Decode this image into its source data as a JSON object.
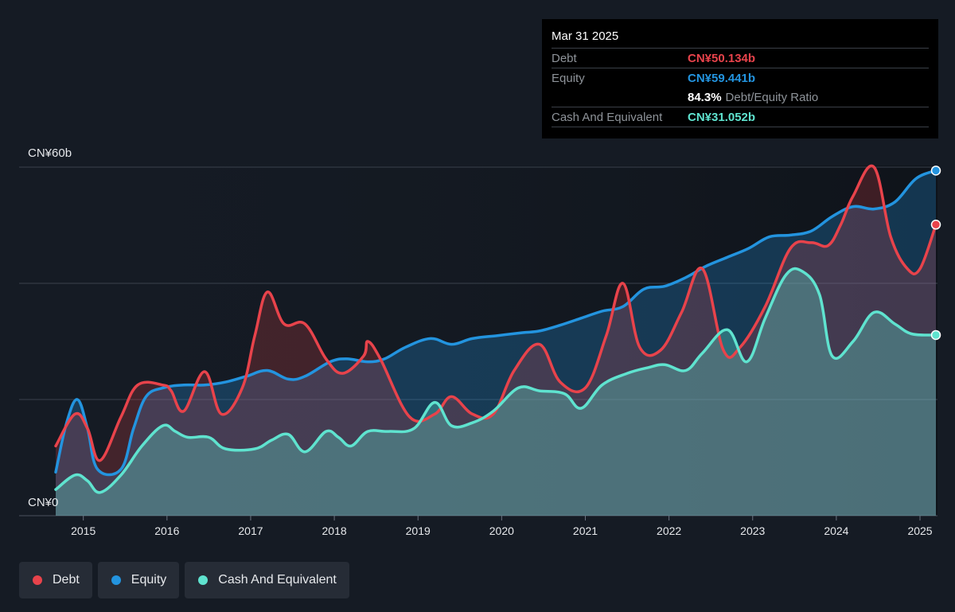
{
  "tooltip": {
    "date": "Mar 31 2025",
    "debt_label": "Debt",
    "debt_value": "CN¥50.134b",
    "equity_label": "Equity",
    "equity_value": "CN¥59.441b",
    "ratio_value": "84.3%",
    "ratio_label": "Debt/Equity Ratio",
    "cash_label": "Cash And Equivalent",
    "cash_value": "CN¥31.052b"
  },
  "legend": [
    {
      "label": "Debt",
      "color": "#e8434b"
    },
    {
      "label": "Equity",
      "color": "#2394df"
    },
    {
      "label": "Cash And Equivalent",
      "color": "#5fe3cf"
    }
  ],
  "colors": {
    "debt": "#e8434b",
    "equity": "#2394df",
    "cash": "#5fe3cf",
    "grid": "#3a414c"
  },
  "chart_data": {
    "type": "area",
    "y_top_label": "CN¥60b",
    "y_bottom_label": "CN¥0",
    "ylim": [
      0,
      60
    ],
    "x_tick_labels": [
      "2015",
      "2016",
      "2017",
      "2018",
      "2019",
      "2020",
      "2021",
      "2022",
      "2023",
      "2024",
      "2025"
    ],
    "xlim": [
      2014.72,
      2025.24
    ],
    "series": [
      {
        "name": "Debt",
        "key": "debt",
        "points": [
          [
            2014.72,
            12
          ],
          [
            2014.95,
            17.5
          ],
          [
            2015.1,
            15
          ],
          [
            2015.25,
            9.5
          ],
          [
            2015.5,
            17
          ],
          [
            2015.7,
            22.5
          ],
          [
            2016.0,
            22.5
          ],
          [
            2016.1,
            21.5
          ],
          [
            2016.25,
            18
          ],
          [
            2016.5,
            24.8
          ],
          [
            2016.7,
            17.5
          ],
          [
            2016.95,
            22
          ],
          [
            2017.1,
            31
          ],
          [
            2017.25,
            38.5
          ],
          [
            2017.45,
            33
          ],
          [
            2017.7,
            33
          ],
          [
            2017.95,
            27
          ],
          [
            2018.15,
            24.5
          ],
          [
            2018.4,
            27.5
          ],
          [
            2018.45,
            30
          ],
          [
            2018.6,
            27
          ],
          [
            2018.95,
            17
          ],
          [
            2019.25,
            17.5
          ],
          [
            2019.45,
            20.5
          ],
          [
            2019.7,
            17.5
          ],
          [
            2019.95,
            17.5
          ],
          [
            2020.2,
            25
          ],
          [
            2020.5,
            29.5
          ],
          [
            2020.75,
            23
          ],
          [
            2021.05,
            22
          ],
          [
            2021.3,
            31
          ],
          [
            2021.5,
            40
          ],
          [
            2021.7,
            29
          ],
          [
            2021.95,
            28.5
          ],
          [
            2022.2,
            35
          ],
          [
            2022.45,
            42.5
          ],
          [
            2022.7,
            28.5
          ],
          [
            2022.9,
            29
          ],
          [
            2023.2,
            36
          ],
          [
            2023.5,
            46
          ],
          [
            2023.75,
            47
          ],
          [
            2023.95,
            46.5
          ],
          [
            2024.1,
            50
          ],
          [
            2024.25,
            55
          ],
          [
            2024.5,
            60
          ],
          [
            2024.7,
            48
          ],
          [
            2024.9,
            42.5
          ],
          [
            2025.05,
            42.5
          ],
          [
            2025.24,
            50.1
          ]
        ]
      },
      {
        "name": "Equity",
        "key": "equity",
        "points": [
          [
            2014.72,
            7.5
          ],
          [
            2014.85,
            16
          ],
          [
            2014.98,
            20
          ],
          [
            2015.1,
            15
          ],
          [
            2015.22,
            8
          ],
          [
            2015.5,
            8
          ],
          [
            2015.65,
            15
          ],
          [
            2015.8,
            20.5
          ],
          [
            2016.0,
            22
          ],
          [
            2016.25,
            22.5
          ],
          [
            2016.5,
            22.5
          ],
          [
            2016.75,
            23
          ],
          [
            2017.0,
            24
          ],
          [
            2017.25,
            25
          ],
          [
            2017.5,
            23.5
          ],
          [
            2017.7,
            24
          ],
          [
            2018.0,
            26.5
          ],
          [
            2018.2,
            27
          ],
          [
            2018.45,
            26.5
          ],
          [
            2018.65,
            27
          ],
          [
            2018.9,
            29
          ],
          [
            2019.2,
            30.5
          ],
          [
            2019.45,
            29.5
          ],
          [
            2019.7,
            30.5
          ],
          [
            2020.0,
            31
          ],
          [
            2020.3,
            31.5
          ],
          [
            2020.5,
            31.8
          ],
          [
            2020.75,
            32.8
          ],
          [
            2021.0,
            34
          ],
          [
            2021.25,
            35.2
          ],
          [
            2021.5,
            36
          ],
          [
            2021.75,
            39
          ],
          [
            2022.0,
            39.5
          ],
          [
            2022.25,
            41
          ],
          [
            2022.5,
            43
          ],
          [
            2022.75,
            44.5
          ],
          [
            2023.0,
            46
          ],
          [
            2023.25,
            48
          ],
          [
            2023.5,
            48.3
          ],
          [
            2023.75,
            49
          ],
          [
            2024.0,
            51.5
          ],
          [
            2024.25,
            53.2
          ],
          [
            2024.5,
            52.8
          ],
          [
            2024.75,
            54
          ],
          [
            2025.0,
            58
          ],
          [
            2025.24,
            59.4
          ]
        ]
      },
      {
        "name": "Cash And Equivalent",
        "key": "cash",
        "points": [
          [
            2014.72,
            4.5
          ],
          [
            2014.95,
            7
          ],
          [
            2015.1,
            6
          ],
          [
            2015.25,
            4
          ],
          [
            2015.5,
            7
          ],
          [
            2015.75,
            12
          ],
          [
            2016.0,
            15.5
          ],
          [
            2016.15,
            14.5
          ],
          [
            2016.3,
            13.5
          ],
          [
            2016.55,
            13.5
          ],
          [
            2016.75,
            11.5
          ],
          [
            2017.1,
            11.5
          ],
          [
            2017.3,
            13
          ],
          [
            2017.5,
            14
          ],
          [
            2017.7,
            11
          ],
          [
            2017.95,
            14.5
          ],
          [
            2018.1,
            13.5
          ],
          [
            2018.25,
            12
          ],
          [
            2018.45,
            14.5
          ],
          [
            2018.7,
            14.5
          ],
          [
            2019.0,
            15
          ],
          [
            2019.25,
            19.5
          ],
          [
            2019.45,
            15.5
          ],
          [
            2019.7,
            16
          ],
          [
            2019.95,
            18
          ],
          [
            2020.25,
            22
          ],
          [
            2020.5,
            21.5
          ],
          [
            2020.8,
            21
          ],
          [
            2021.0,
            18.5
          ],
          [
            2021.25,
            22.5
          ],
          [
            2021.55,
            24.5
          ],
          [
            2021.8,
            25.5
          ],
          [
            2022.0,
            26
          ],
          [
            2022.25,
            25
          ],
          [
            2022.45,
            28
          ],
          [
            2022.75,
            32
          ],
          [
            2022.98,
            26.5
          ],
          [
            2023.2,
            34
          ],
          [
            2023.45,
            41.5
          ],
          [
            2023.65,
            42
          ],
          [
            2023.85,
            38
          ],
          [
            2024.0,
            27.5
          ],
          [
            2024.25,
            30
          ],
          [
            2024.5,
            35
          ],
          [
            2024.75,
            33
          ],
          [
            2024.95,
            31.3
          ],
          [
            2025.24,
            31.1
          ]
        ]
      }
    ]
  }
}
